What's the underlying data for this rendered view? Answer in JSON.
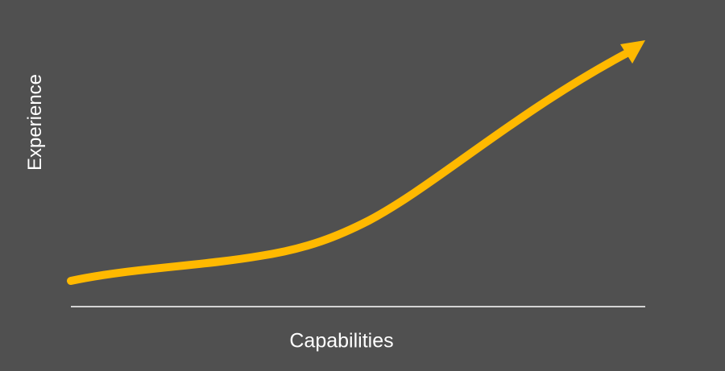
{
  "diagram": {
    "x_axis_label": "Capabilities",
    "y_axis_label": "Experience",
    "colors": {
      "background": "#505050",
      "curve": "#ffb900",
      "axis": "#ffffff",
      "label": "#ffffff"
    }
  }
}
